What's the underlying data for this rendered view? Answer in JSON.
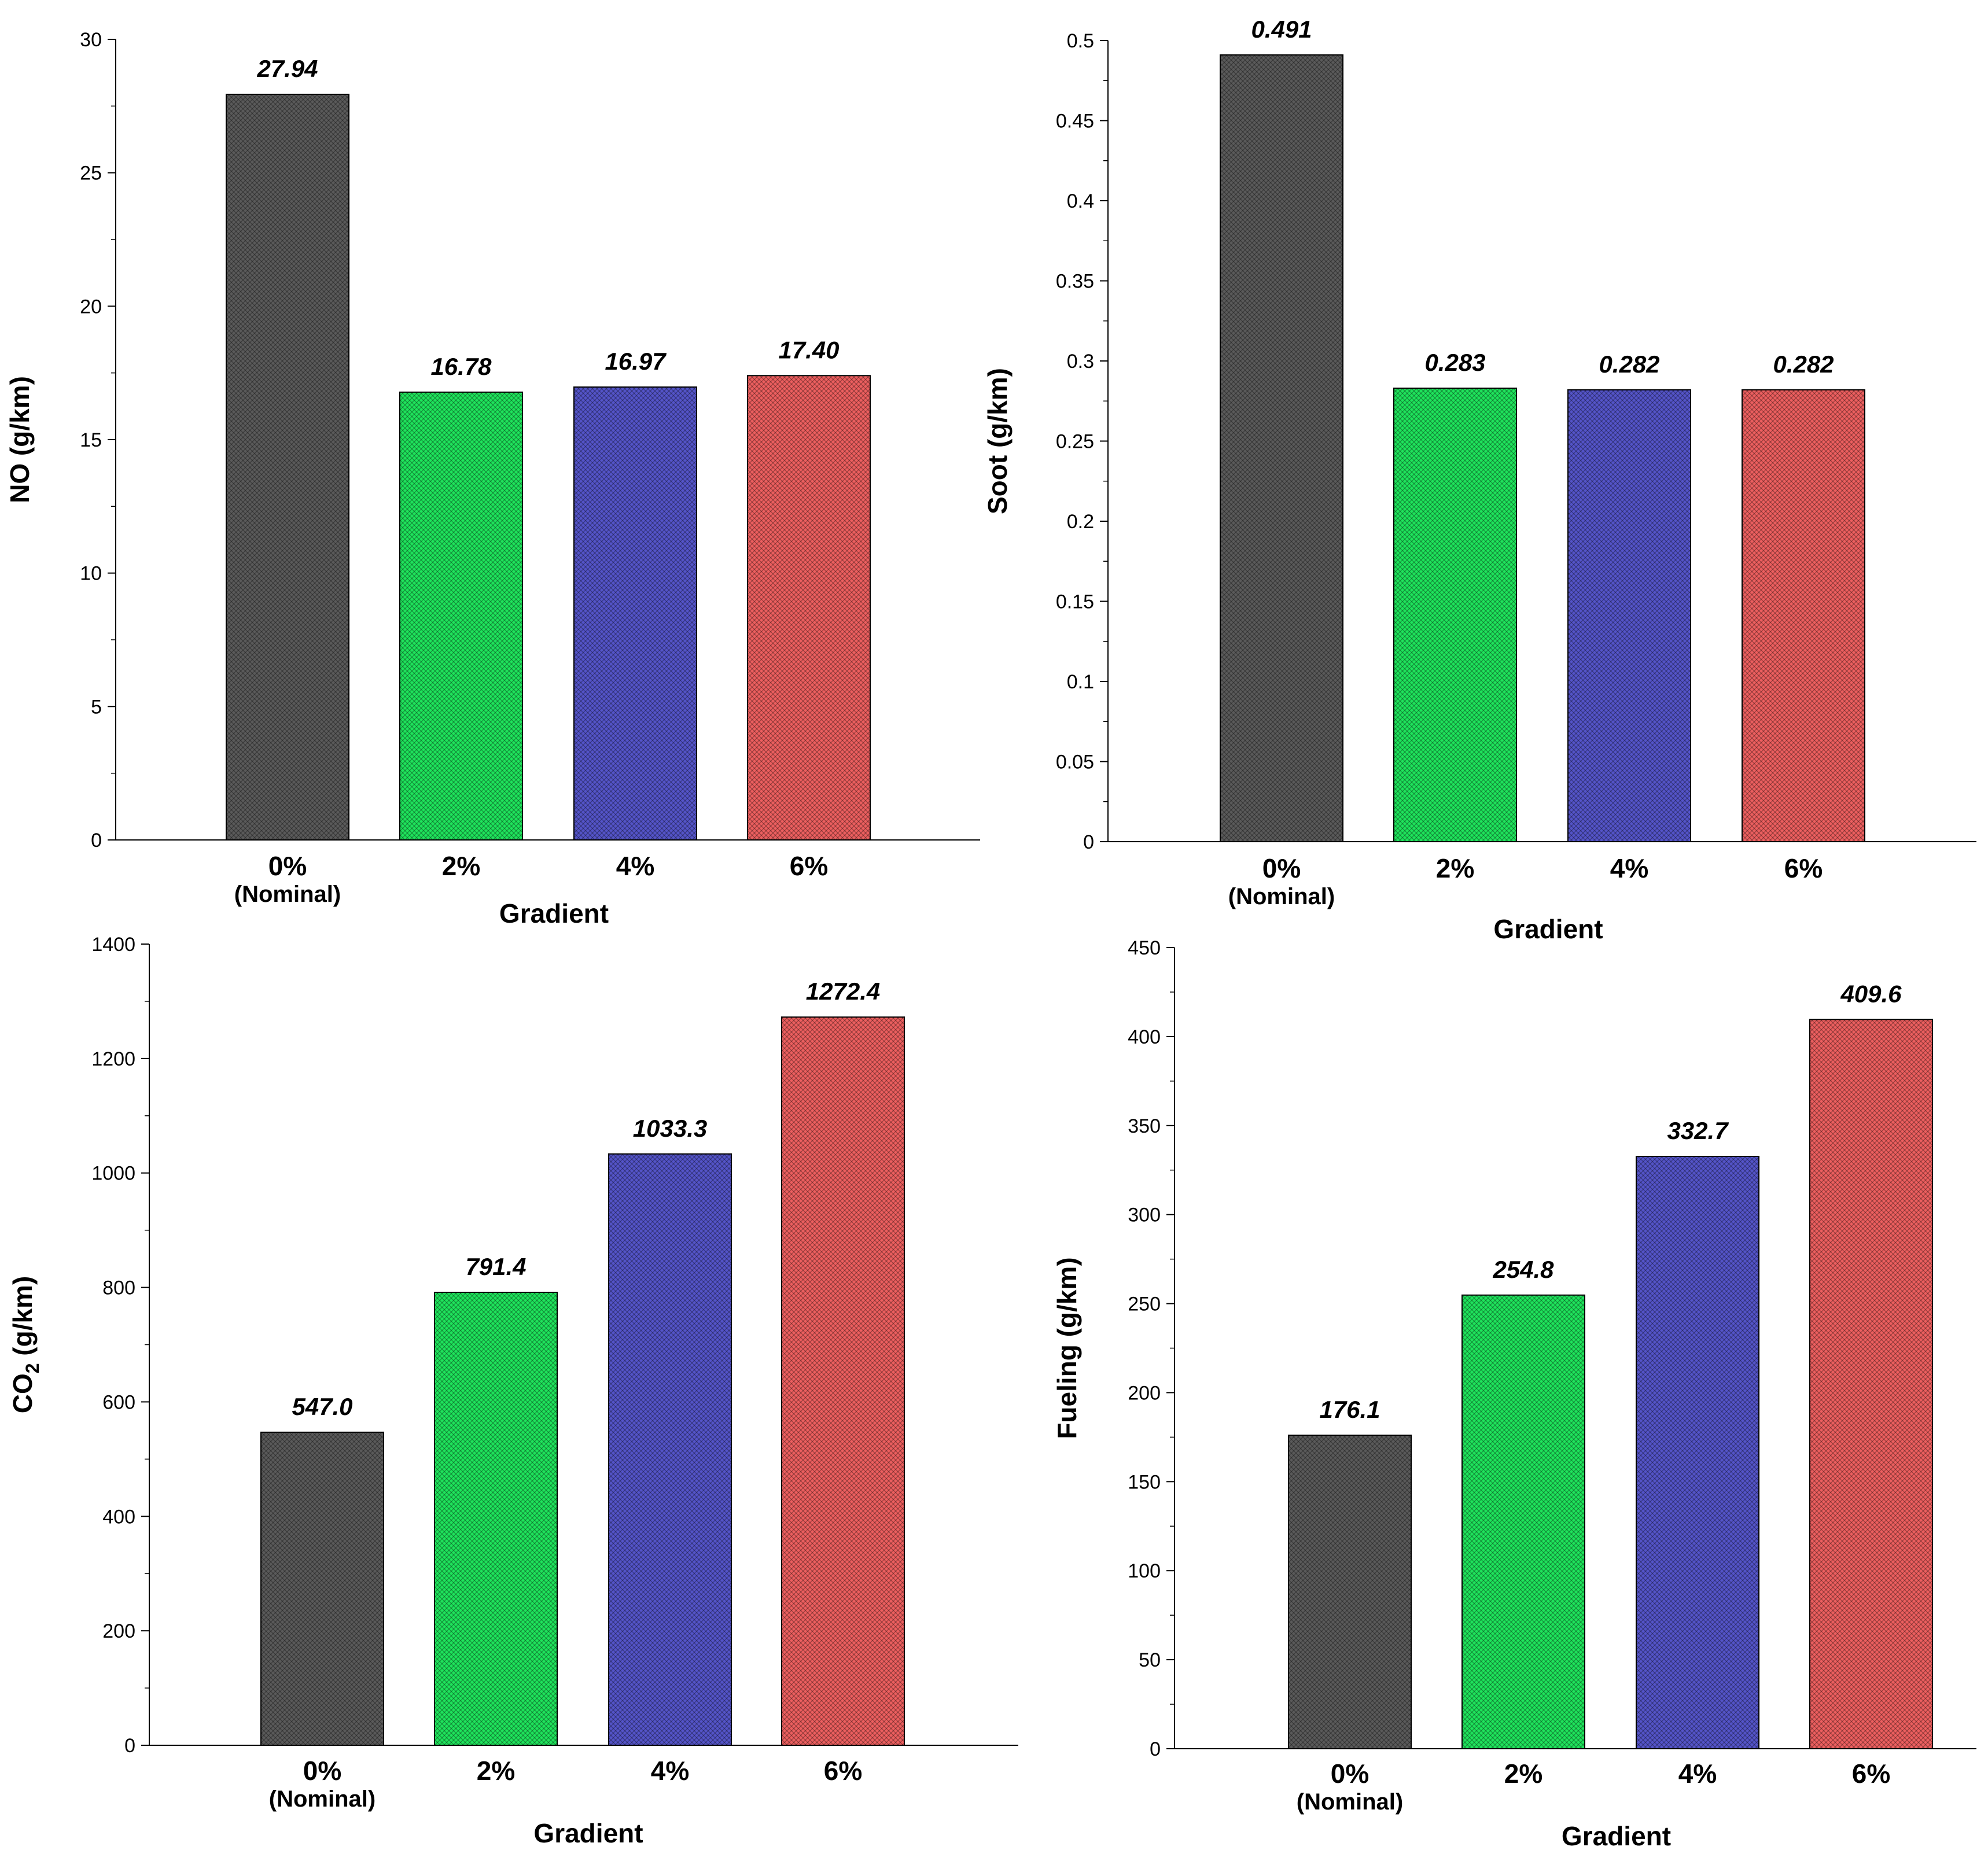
{
  "figure": {
    "panel_count": 4
  },
  "colors": {
    "black": "#5a5a5a",
    "green": "#1fe35c",
    "blue": "#5454c8",
    "red": "#ec5f5f"
  },
  "chart_data": [
    {
      "type": "bar",
      "panel": "top-left",
      "title": "",
      "xlabel": "Gradient",
      "ylabel": "NO (g/km)",
      "categories": [
        "0%",
        "2%",
        "4%",
        "6%"
      ],
      "category_sublabels": [
        "(Nominal)",
        "",
        "",
        ""
      ],
      "values": [
        27.94,
        16.78,
        16.97,
        17.4
      ],
      "value_labels": [
        "27.94",
        "16.78",
        "16.97",
        "17.40"
      ],
      "bar_colors": [
        "#5a5a5a",
        "#1fe35c",
        "#5454c8",
        "#ec5f5f"
      ],
      "ylim": [
        0,
        30
      ],
      "yticks": [
        "0",
        "5",
        "10",
        "15",
        "20",
        "25",
        "30"
      ],
      "minor_ticks_per_major": 2,
      "grid": false
    },
    {
      "type": "bar",
      "panel": "top-right",
      "title": "",
      "xlabel": "Gradient",
      "ylabel": "Soot (g/km)",
      "categories": [
        "0%",
        "2%",
        "4%",
        "6%"
      ],
      "category_sublabels": [
        "(Nominal)",
        "",
        "",
        ""
      ],
      "values": [
        0.491,
        0.283,
        0.282,
        0.282
      ],
      "value_labels": [
        "0.491",
        "0.283",
        "0.282",
        "0.282"
      ],
      "bar_colors": [
        "#5a5a5a",
        "#1fe35c",
        "#5454c8",
        "#ec5f5f"
      ],
      "ylim": [
        0,
        0.5
      ],
      "yticks": [
        "0",
        "0.05",
        "0.1",
        "0.15",
        "0.2",
        "0.25",
        "0.3",
        "0.35",
        "0.4",
        "0.45",
        "0.5"
      ],
      "minor_ticks_per_major": 2,
      "grid": false
    },
    {
      "type": "bar",
      "panel": "bottom-left",
      "title": "",
      "xlabel": "Gradient",
      "ylabel": "CO",
      "ylabel_subscript": "2",
      "ylabel_suffix": " (g/km)",
      "categories": [
        "0%",
        "2%",
        "4%",
        "6%"
      ],
      "category_sublabels": [
        "(Nominal)",
        "",
        "",
        ""
      ],
      "values": [
        547.0,
        791.4,
        1033.3,
        1272.4
      ],
      "value_labels": [
        "547.0",
        "791.4",
        "1033.3",
        "1272.4"
      ],
      "bar_colors": [
        "#5a5a5a",
        "#1fe35c",
        "#5454c8",
        "#ec5f5f"
      ],
      "ylim": [
        0,
        1400
      ],
      "yticks": [
        "0",
        "200",
        "400",
        "600",
        "800",
        "1000",
        "1200",
        "1400"
      ],
      "minor_ticks_per_major": 2,
      "grid": false
    },
    {
      "type": "bar",
      "panel": "bottom-right",
      "title": "",
      "xlabel": "Gradient",
      "ylabel": "Fueling (g/km)",
      "categories": [
        "0%",
        "2%",
        "4%",
        "6%"
      ],
      "category_sublabels": [
        "(Nominal)",
        "",
        "",
        ""
      ],
      "values": [
        176.1,
        254.8,
        332.7,
        409.6
      ],
      "value_labels": [
        "176.1",
        "254.8",
        "332.7",
        "409.6"
      ],
      "bar_colors": [
        "#5a5a5a",
        "#1fe35c",
        "#5454c8",
        "#ec5f5f"
      ],
      "ylim": [
        0,
        450
      ],
      "yticks": [
        "0",
        "50",
        "100",
        "150",
        "200",
        "250",
        "300",
        "350",
        "400",
        "450"
      ],
      "minor_ticks_per_major": 2,
      "grid": false
    }
  ]
}
